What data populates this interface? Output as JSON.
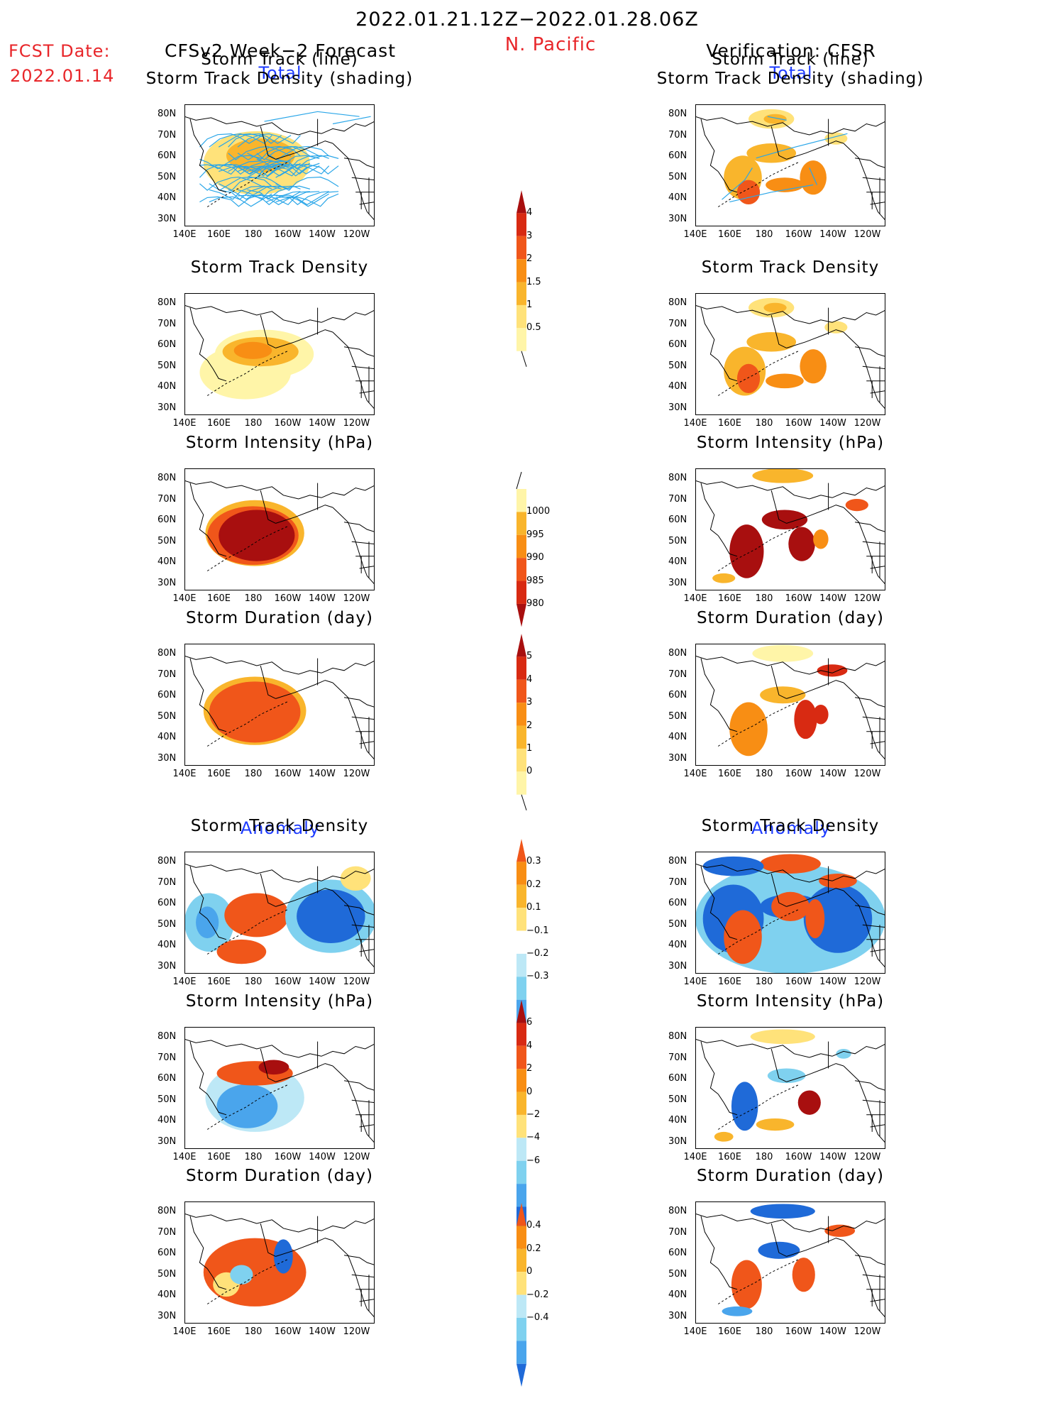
{
  "header": {
    "date_range": "2022.01.21.12Z−2022.01.28.06Z",
    "region": "N. Pacific",
    "fcst_label": "FCST Date:",
    "fcst_date": "2022.01.14",
    "left_title": "CFSv2 Week−2 Forecast",
    "right_title": "Verification: CFSR",
    "total_label": "Total",
    "anomaly_label": "Anomaly"
  },
  "titles": {
    "track_line": "Storm Track (line)",
    "track_shading": "Storm Track Density (shading)",
    "density": "Storm Track Density",
    "intensity": "Storm Intensity (hPa)",
    "duration": "Storm Duration (day)"
  },
  "axes": {
    "lat_labels": [
      "80N",
      "70N",
      "60N",
      "50N",
      "40N",
      "30N"
    ],
    "lon_labels": [
      "140E",
      "160E",
      "180",
      "160W",
      "140W",
      "120W"
    ]
  },
  "colorbars": {
    "density_total": [
      "4",
      "3",
      "2",
      "1.5",
      "1",
      "0.5"
    ],
    "intensity_total": [
      "1000",
      "995",
      "990",
      "985",
      "980"
    ],
    "duration_total": [
      "5",
      "4",
      "3",
      "2",
      "1",
      "0"
    ],
    "density_anom": [
      "0.3",
      "0.2",
      "0.1",
      "−0.1",
      "−0.2",
      "−0.3"
    ],
    "intensity_anom": [
      "6",
      "4",
      "2",
      "0",
      "−2",
      "−4",
      "−6"
    ],
    "duration_anom": [
      "0.4",
      "0.2",
      "0",
      "−0.2",
      "−0.4"
    ]
  },
  "colors": {
    "red_text": "#e8262a",
    "blue_text": "#1e3cff",
    "track_line": "#2aa6e8"
  }
}
